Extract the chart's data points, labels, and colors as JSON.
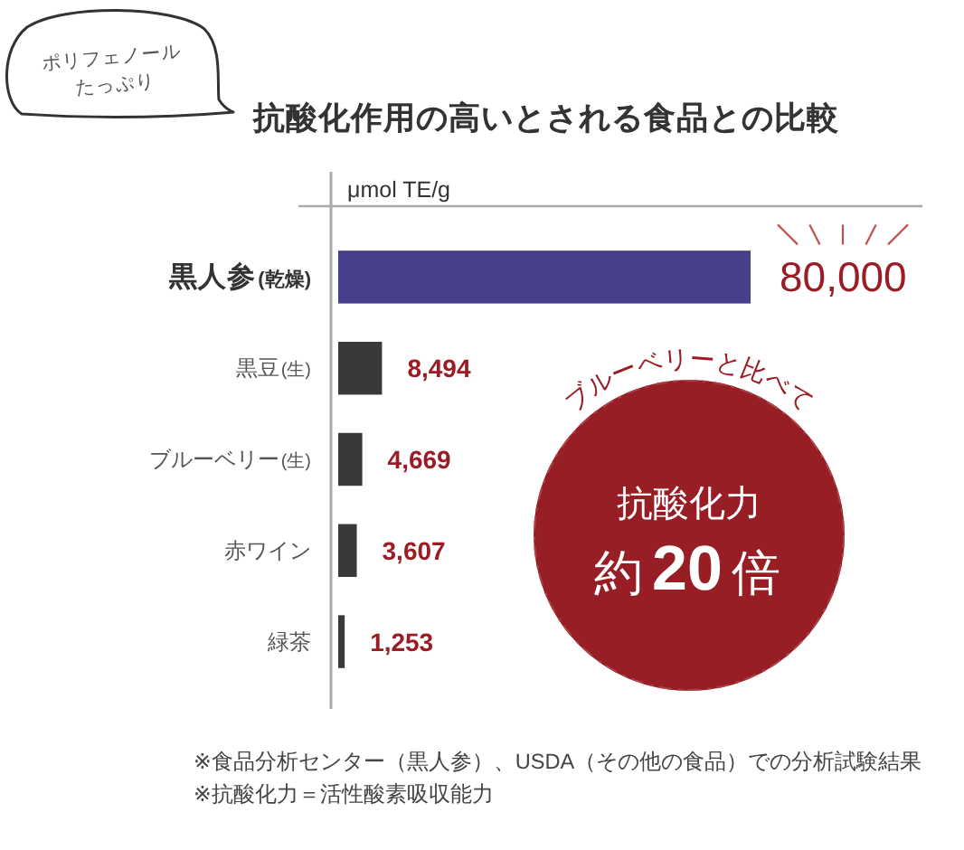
{
  "chart_data": {
    "type": "bar",
    "orientation": "horizontal",
    "title": "抗酸化作用の高いとされる食品との比較",
    "xlabel": "μmol TE/g",
    "categories": [
      "黒人参(乾燥)",
      "黒豆(生)",
      "ブルーベリー(生)",
      "赤ワイン",
      "緑茶"
    ],
    "values": [
      80000,
      8494,
      4669,
      3607,
      1253
    ],
    "colors": [
      "#483f8c",
      "#3b3838",
      "#3b3838",
      "#3b3838",
      "#3b3838"
    ],
    "value_labels": [
      "80,000",
      "8,494",
      "4,669",
      "3,607",
      "1,253"
    ],
    "annotations": [
      "ポリフェノール",
      "たっぷり",
      "ブルーベリーと比べて",
      "抗酸化力",
      "約20倍",
      "※食品分析センター（黒人参）、USDA（その他の食品）での分析試験結果",
      "※抗酸化力＝活性酸素吸収能力"
    ]
  }
}
